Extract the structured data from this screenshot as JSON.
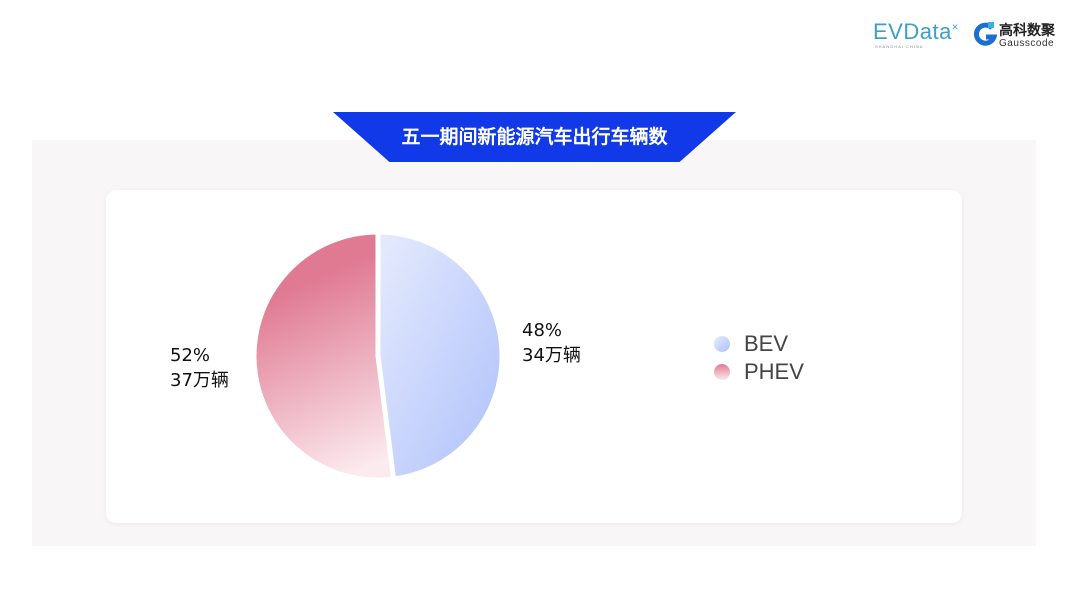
{
  "logos": {
    "evdata": "EVData",
    "evdata_sub": "SHANGHAI CHINA",
    "gauss_cn": "高科数聚",
    "gauss_en": "Gausscode"
  },
  "chart_data": {
    "type": "pie",
    "title": "五一期间新能源汽车出行车辆数",
    "slices": [
      {
        "name": "BEV",
        "percent": 48,
        "value_label": "34万辆",
        "color": "#b3c6fa"
      },
      {
        "name": "PHEV",
        "percent": 52,
        "value_label": "37万辆",
        "color": "#e07a93"
      }
    ],
    "legend": "right"
  },
  "labels": {
    "bev_pct": "48%",
    "bev_val": "34万辆",
    "phev_pct": "52%",
    "phev_val": "37万辆"
  }
}
